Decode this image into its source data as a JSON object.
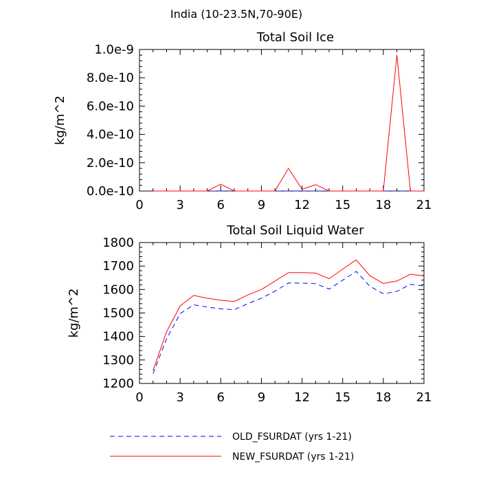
{
  "suptitle": "India (10-23.5N,70-90E)",
  "legend": {
    "placement": "bottom",
    "entries": [
      {
        "label": "OLD_FSURDAT (yrs 1-21)",
        "color": "#0000ff",
        "dash": "dashed"
      },
      {
        "label": "NEW_FSURDAT (yrs 1-21)",
        "color": "#ff0000",
        "dash": "solid"
      }
    ]
  },
  "chart_data": [
    {
      "type": "line",
      "title": "Total Soil Ice",
      "ylabel": "kg/m^2",
      "xlabel": "",
      "xlim": [
        0,
        21
      ],
      "ylim": [
        0,
        1e-09
      ],
      "xticks": [
        "0",
        "3",
        "6",
        "9",
        "12",
        "15",
        "18",
        "21"
      ],
      "yticks": [
        "0.0e-10",
        "2.0e-10",
        "4.0e-10",
        "6.0e-10",
        "8.0e-10",
        "1.0e-9"
      ],
      "grid": false,
      "x": [
        1,
        2,
        3,
        4,
        5,
        6,
        7,
        8,
        9,
        10,
        11,
        12,
        13,
        14,
        15,
        16,
        17,
        18,
        19,
        20,
        21
      ],
      "series": [
        {
          "name": "OLD_FSURDAT (yrs 1-21)",
          "color": "#0000ff",
          "dash": "dashed",
          "values": [
            0,
            0,
            0,
            0,
            0,
            0,
            0,
            0,
            0,
            0,
            0,
            0,
            0,
            0,
            0,
            0,
            0,
            0,
            0,
            0,
            0
          ]
        },
        {
          "name": "NEW_FSURDAT (yrs 1-21)",
          "color": "#ff0000",
          "dash": "solid",
          "values": [
            0,
            0,
            0,
            0,
            0,
            4.8e-11,
            0,
            0,
            0,
            0,
            1.6e-10,
            1.2e-11,
            4.5e-11,
            0,
            0,
            0,
            0,
            0,
            9.6e-10,
            0,
            0
          ]
        }
      ]
    },
    {
      "type": "line",
      "title": "Total Soil Liquid Water",
      "ylabel": "kg/m^2",
      "xlabel": "",
      "xlim": [
        0,
        21
      ],
      "ylim": [
        1200,
        1800
      ],
      "xticks": [
        "0",
        "3",
        "6",
        "9",
        "12",
        "15",
        "18",
        "21"
      ],
      "yticks": [
        "1200",
        "1300",
        "1400",
        "1500",
        "1600",
        "1700",
        "1800"
      ],
      "grid": false,
      "x": [
        1,
        2,
        3,
        4,
        5,
        6,
        7,
        8,
        9,
        10,
        11,
        12,
        13,
        14,
        15,
        16,
        17,
        18,
        19,
        20,
        21
      ],
      "series": [
        {
          "name": "OLD_FSURDAT (yrs 1-21)",
          "color": "#0000ff",
          "dash": "dashed",
          "values": [
            1242,
            1390,
            1497,
            1535,
            1525,
            1518,
            1514,
            1540,
            1563,
            1593,
            1628,
            1627,
            1625,
            1602,
            1640,
            1677,
            1614,
            1582,
            1592,
            1622,
            1615
          ]
        },
        {
          "name": "NEW_FSURDAT (yrs 1-21)",
          "color": "#ff0000",
          "dash": "solid",
          "values": [
            1255,
            1420,
            1530,
            1575,
            1563,
            1554,
            1549,
            1577,
            1600,
            1636,
            1672,
            1672,
            1670,
            1646,
            1687,
            1726,
            1659,
            1626,
            1636,
            1665,
            1658
          ]
        }
      ]
    }
  ]
}
